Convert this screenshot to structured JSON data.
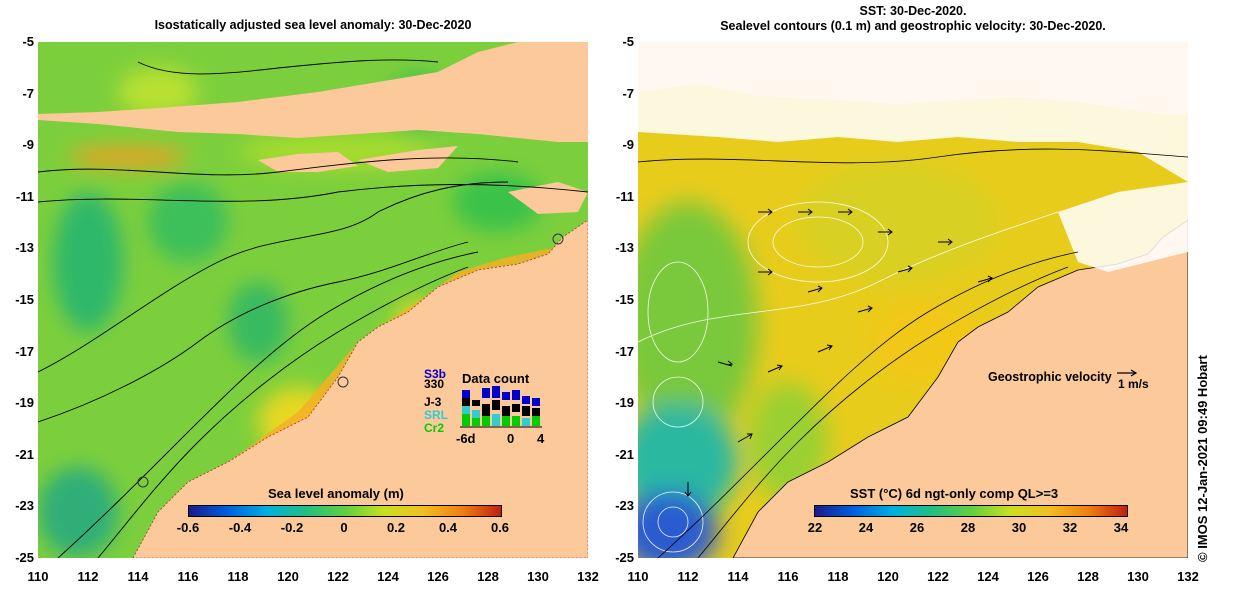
{
  "left_panel": {
    "title": "Isostatically adjusted sea level anomaly: 30-Dec-2020",
    "colorbar": {
      "label": "Sea level anomaly (m)",
      "ticks": [
        "-0.6",
        "-0.4",
        "-0.2",
        "0",
        "0.2",
        "0.4",
        "0.6"
      ]
    },
    "data_count": {
      "title": "Data count",
      "satellites": [
        {
          "name": "S3b",
          "color": "#0000cc"
        },
        {
          "name": "330",
          "color": "#000000"
        },
        {
          "name": "J-3",
          "color": "#000000"
        },
        {
          "name": "SRL",
          "color": "#33cccc"
        },
        {
          "name": "Cr2",
          "color": "#00cc00"
        }
      ],
      "axis": [
        "-6d",
        "0",
        "4"
      ]
    }
  },
  "right_panel": {
    "title_line1": "SST: 30-Dec-2020.",
    "title_line2": "Sealevel contours (0.1 m) and geostrophic velocity: 30-Dec-2020.",
    "colorbar": {
      "label": "SST (°C) 6d ngt-only comp QL>=3",
      "ticks": [
        "22",
        "24",
        "26",
        "28",
        "30",
        "32",
        "34"
      ]
    },
    "velocity_legend": {
      "label": "Geostrophic velocity",
      "scale": "1 m/s"
    }
  },
  "axes": {
    "y_ticks": [
      "-5",
      "-7",
      "-9",
      "-11",
      "-13",
      "-15",
      "-17",
      "-19",
      "-21",
      "-23",
      "-25"
    ],
    "x_ticks": [
      "110",
      "112",
      "114",
      "116",
      "118",
      "120",
      "122",
      "124",
      "126",
      "128",
      "130",
      "132"
    ],
    "lon_range": [
      110,
      132
    ],
    "lat_range": [
      -25,
      -5
    ]
  },
  "credit": "© IMOS 12-Jan-2021 09:49 Hobart",
  "colors": {
    "land": "#fcc99a",
    "ocean_green": "#7ad03a",
    "sst_yellow": "#e8c81c",
    "cloud": "#ffffff"
  }
}
